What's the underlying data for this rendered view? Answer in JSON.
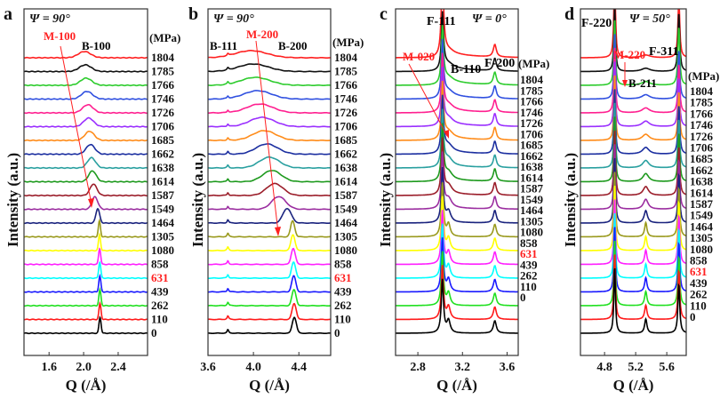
{
  "chart_data": [
    {
      "type": "line",
      "panel_letter": "a",
      "psi_label": "Ψ = 90°",
      "xlabel": "Q (/Å)",
      "ylabel": "Intensity (a.u.)",
      "xlim": [
        1.31,
        2.74
      ],
      "xticks": [
        1.6,
        2.0,
        2.4
      ],
      "xtick_labels": [
        "1.6",
        "2.0",
        "2.4"
      ],
      "unit_label": "(MPa)",
      "annotations": [
        {
          "text": "M-100",
          "color": "#ff2020",
          "type": "arrow",
          "from": [
            1.95,
            1804
          ],
          "to": [
            2.06,
            1549
          ]
        },
        {
          "text": "B-100",
          "color": "#000000",
          "at": [
            2.07,
            1804
          ]
        }
      ],
      "peaks": [
        {
          "name": "B-100",
          "center_by_stress": "shifts from 2.19 (0 MPa) to 2.00 (1804 MPa)",
          "sharp_below_MPa": 1464
        }
      ]
    },
    {
      "type": "line",
      "panel_letter": "b",
      "psi_label": "Ψ = 90°",
      "xlabel": "Q (/Å)",
      "ylabel": "Intensity (a.u.)",
      "xlim": [
        3.6,
        4.68
      ],
      "xticks": [
        3.6,
        4.0,
        4.4
      ],
      "xtick_labels": [
        "3.6",
        "4.0",
        "4.4"
      ],
      "unit_label": "(MPa)",
      "annotations": [
        {
          "text": "M-200",
          "color": "#ff2020",
          "type": "arrow",
          "from": [
            3.98,
            1804
          ],
          "to": [
            4.25,
            1305
          ]
        },
        {
          "text": "B-111",
          "color": "#000000",
          "at": [
            3.72,
            1804
          ]
        },
        {
          "text": "B-200",
          "color": "#000000",
          "at": [
            4.32,
            1804
          ]
        }
      ],
      "peaks": [
        {
          "name": "B-111",
          "center": 3.77
        },
        {
          "name": "B-200",
          "center_by_stress": "shifts from 4.36 (0 MPa) to ~4.0 broad (1804 MPa)"
        }
      ]
    },
    {
      "type": "line",
      "panel_letter": "c",
      "psi_label": "Ψ = 0°",
      "xlabel": "Q (/Å)",
      "ylabel": "Intensity (a.u.)",
      "xlim": [
        2.6,
        3.7
      ],
      "xticks": [
        2.8,
        3.2,
        3.6
      ],
      "xtick_labels": [
        "2.8",
        "3.2",
        "3.6"
      ],
      "unit_label": "(MPa)",
      "annotations": [
        {
          "text": "F-111",
          "color": "#000000",
          "at": [
            3.02,
            1804
          ]
        },
        {
          "text": "M-020",
          "color": "#ff2020",
          "type": "arrow",
          "from": [
            2.96,
            1804
          ],
          "to": [
            3.06,
            1726
          ]
        },
        {
          "text": "B-110",
          "color": "#000000",
          "at": [
            3.12,
            1804
          ]
        },
        {
          "text": "F-200",
          "color": "#000000",
          "at": [
            3.49,
            1804
          ]
        }
      ],
      "peaks": [
        {
          "name": "F-111",
          "center": 3.02
        },
        {
          "name": "B-110",
          "center": 3.07
        },
        {
          "name": "F-200",
          "center": 3.49
        }
      ]
    },
    {
      "type": "line",
      "panel_letter": "d",
      "psi_label": "Ψ = 50°",
      "xlabel": "Q (/Å)",
      "ylabel": "Intensity (a.u.)",
      "xlim": [
        4.49,
        5.85
      ],
      "xticks": [
        4.8,
        5.2,
        5.6
      ],
      "xtick_labels": [
        "4.8",
        "5.2",
        "5.6"
      ],
      "unit_label": "(MPa)",
      "annotations": [
        {
          "text": "F-220",
          "color": "#000000",
          "at": [
            4.93,
            1804
          ]
        },
        {
          "text": "M-220",
          "color": "#ff2020",
          "type": "arrow",
          "from": [
            5.1,
            1804
          ],
          "to": [
            5.1,
            1804
          ]
        },
        {
          "text": "B-211",
          "color": "#000000",
          "at": [
            5.25,
            1804
          ]
        },
        {
          "text": "F-311",
          "color": "#000000",
          "at": [
            5.75,
            1804
          ]
        }
      ],
      "peaks": [
        {
          "name": "F-220",
          "center": 4.93
        },
        {
          "name": "B-211",
          "center": 5.33
        },
        {
          "name": "F-311",
          "center": 5.75
        }
      ]
    }
  ],
  "stress_levels_MPa": [
    "1804",
    "1785",
    "1766",
    "1746",
    "1726",
    "1706",
    "1685",
    "1662",
    "1638",
    "1614",
    "1587",
    "1549",
    "1464",
    "1305",
    "1080",
    "858",
    "631",
    "439",
    "262",
    "110",
    "0"
  ],
  "highlighted_level": "631",
  "series_colors": {
    "1804": "#ff2020",
    "1785": "#111111",
    "1766": "#2ecc2e",
    "1746": "#3050e0",
    "1726": "#ff2090",
    "1706": "#9b30ff",
    "1685": "#ff8c1a",
    "1662": "#1c2fa0",
    "1638": "#2aa0a0",
    "1614": "#1e9a1e",
    "1587": "#9b1e2a",
    "1549": "#9b2ea0",
    "1464": "#1a237e",
    "1305": "#9a9a1e",
    "1080": "#ffff00",
    "858": "#ff20ff",
    "631": "#00ffff",
    "439": "#1a1aff",
    "262": "#20e020",
    "110": "#ff1a1a",
    "0": "#000000"
  },
  "highlight_color": "#ff2020"
}
